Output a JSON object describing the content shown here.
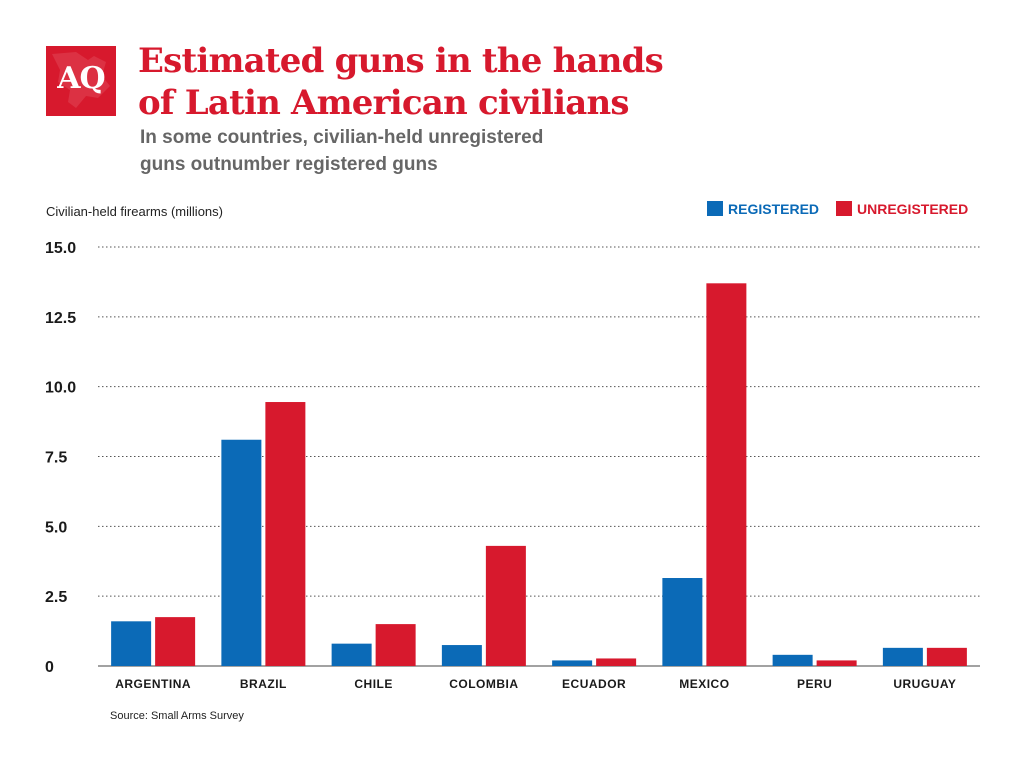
{
  "brand": {
    "logo_text": "AQ"
  },
  "header": {
    "title_line1": "Estimated guns in the hands",
    "title_line2": "of Latin American civilians",
    "subtitle_line1": "In some countries, civilian-held unregistered",
    "subtitle_line2": "guns outnumber registered guns"
  },
  "footer": {
    "source": "Source: Small Arms Survey"
  },
  "colors": {
    "accent": "#d7192d",
    "registered": "#0b6ab7",
    "unregistered": "#d7192d"
  },
  "chart_data": {
    "type": "bar",
    "title": "Estimated guns in the hands of Latin American civilians",
    "subtitle": "In some countries, civilian-held unregistered guns outnumber registered guns",
    "ylabel": "Civilian-held firearms (millions)",
    "xlabel": "",
    "categories": [
      "ARGENTINA",
      "BRAZIL",
      "CHILE",
      "COLOMBIA",
      "ECUADOR",
      "MEXICO",
      "PERU",
      "URUGUAY"
    ],
    "series": [
      {
        "name": "REGISTERED",
        "color": "#0b6ab7",
        "values": [
          1.6,
          8.1,
          0.8,
          0.75,
          0.2,
          3.15,
          0.4,
          0.65
        ]
      },
      {
        "name": "UNREGISTERED",
        "color": "#d7192d",
        "values": [
          1.75,
          9.45,
          1.5,
          4.3,
          0.27,
          13.7,
          0.2,
          0.65
        ]
      }
    ],
    "ylim": [
      0,
      15
    ],
    "yticks": [
      0,
      2.5,
      5,
      7.5,
      10,
      12.5,
      15
    ],
    "ytick_labels": [
      "0",
      "2.5",
      "5.0",
      "7.5",
      "10.0",
      "12.5",
      "15.0"
    ],
    "grid": true,
    "legend_position": "top-right",
    "source": "Source: Small Arms Survey"
  }
}
